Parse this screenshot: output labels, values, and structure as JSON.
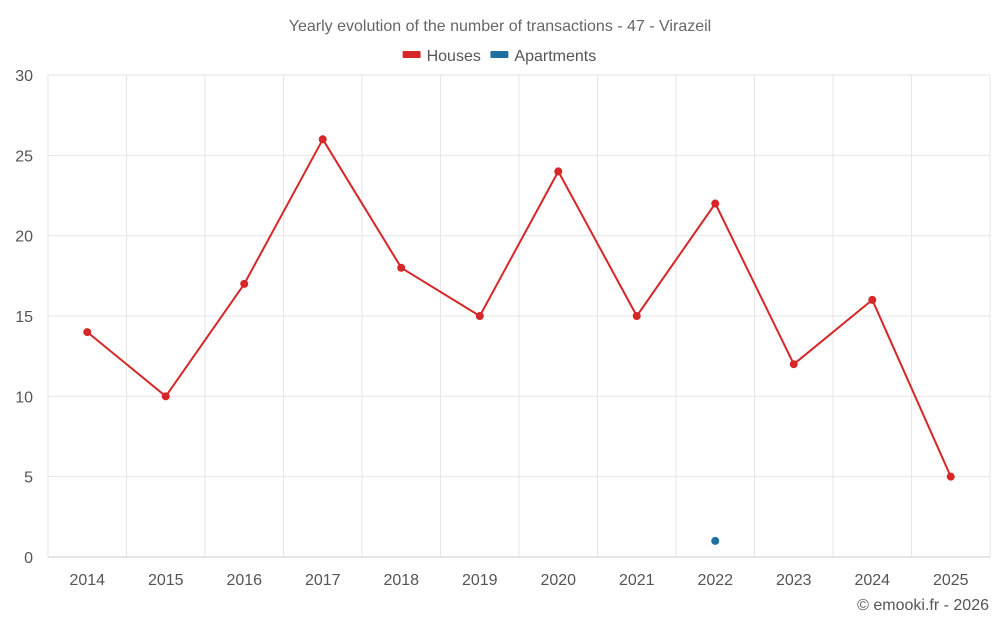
{
  "chart_data": {
    "type": "line",
    "title": "Yearly evolution of the number of transactions - 47 - Virazeil",
    "xlabel": "",
    "ylabel": "",
    "categories": [
      "2014",
      "2015",
      "2016",
      "2017",
      "2018",
      "2019",
      "2020",
      "2021",
      "2022",
      "2023",
      "2024",
      "2025"
    ],
    "ylim": [
      0,
      30
    ],
    "yticks": [
      0,
      5,
      10,
      15,
      20,
      25,
      30
    ],
    "grid": true,
    "legend_position": "top-center",
    "series": [
      {
        "name": "Houses",
        "color": "#d62728",
        "values": [
          14,
          10,
          17,
          26,
          18,
          15,
          24,
          15,
          22,
          12,
          16,
          5
        ]
      },
      {
        "name": "Apartments",
        "color": "#1f6fa0",
        "values": [
          null,
          null,
          null,
          null,
          null,
          null,
          null,
          null,
          1,
          null,
          null,
          null
        ]
      }
    ]
  },
  "credit": "© emooki.fr - 2026"
}
